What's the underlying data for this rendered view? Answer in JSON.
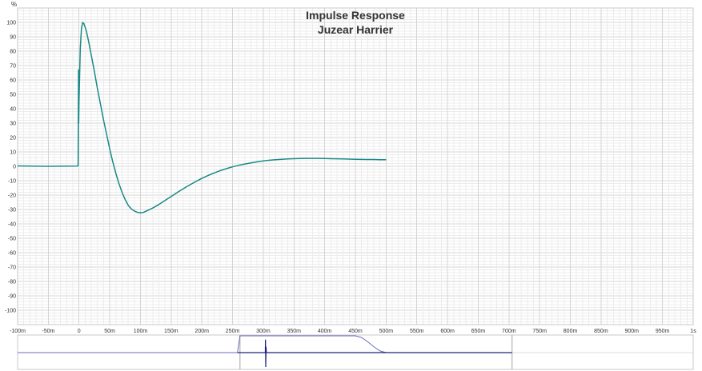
{
  "chart_data": {
    "type": "line",
    "title": "Impulse Response",
    "subtitle": "Juzear Harrier",
    "ylabel": "%",
    "xlabel": "",
    "xlim": [
      -0.1,
      1.0
    ],
    "ylim": [
      -110,
      110
    ],
    "grid": true,
    "x_ticks": [
      {
        "value": -0.1,
        "label": "-100m"
      },
      {
        "value": -0.05,
        "label": "-50m"
      },
      {
        "value": 0.0,
        "label": "0"
      },
      {
        "value": 0.05,
        "label": "50m"
      },
      {
        "value": 0.1,
        "label": "100m"
      },
      {
        "value": 0.15,
        "label": "150m"
      },
      {
        "value": 0.2,
        "label": "200m"
      },
      {
        "value": 0.25,
        "label": "250m"
      },
      {
        "value": 0.3,
        "label": "300m"
      },
      {
        "value": 0.35,
        "label": "350m"
      },
      {
        "value": 0.4,
        "label": "400m"
      },
      {
        "value": 0.45,
        "label": "450m"
      },
      {
        "value": 0.5,
        "label": "500m"
      },
      {
        "value": 0.55,
        "label": "550m"
      },
      {
        "value": 0.6,
        "label": "600m"
      },
      {
        "value": 0.65,
        "label": "650m"
      },
      {
        "value": 0.7,
        "label": "700m"
      },
      {
        "value": 0.75,
        "label": "750m"
      },
      {
        "value": 0.8,
        "label": "800m"
      },
      {
        "value": 0.85,
        "label": "850m"
      },
      {
        "value": 0.9,
        "label": "900m"
      },
      {
        "value": 0.95,
        "label": "950m"
      },
      {
        "value": 1.0,
        "label": "1s"
      }
    ],
    "y_ticks": [
      {
        "value": 100,
        "label": "100"
      },
      {
        "value": 90,
        "label": "90"
      },
      {
        "value": 80,
        "label": "80"
      },
      {
        "value": 70,
        "label": "70"
      },
      {
        "value": 60,
        "label": "60"
      },
      {
        "value": 50,
        "label": "50"
      },
      {
        "value": 40,
        "label": "40"
      },
      {
        "value": 30,
        "label": "30"
      },
      {
        "value": 20,
        "label": "20"
      },
      {
        "value": 10,
        "label": "10"
      },
      {
        "value": 0,
        "label": "0"
      },
      {
        "value": -10,
        "label": "-10"
      },
      {
        "value": -20,
        "label": "-20"
      },
      {
        "value": -30,
        "label": "-30"
      },
      {
        "value": -40,
        "label": "-40"
      },
      {
        "value": -50,
        "label": "-50"
      },
      {
        "value": -60,
        "label": "-60"
      },
      {
        "value": -70,
        "label": "-70"
      },
      {
        "value": -80,
        "label": "-80"
      },
      {
        "value": -90,
        "label": "-90"
      },
      {
        "value": -100,
        "label": "-100"
      }
    ],
    "series": [
      {
        "color": "#1a8a86",
        "points": [
          [
            -0.1,
            0.3
          ],
          [
            -0.05,
            0.0
          ],
          [
            -0.003,
            0.2
          ],
          [
            -0.0015,
            0.4
          ],
          [
            -0.0012,
            25
          ],
          [
            -0.0008,
            67
          ],
          [
            -0.0005,
            30
          ],
          [
            0.0,
            45
          ],
          [
            0.002,
            82
          ],
          [
            0.004,
            96
          ],
          [
            0.006,
            100
          ],
          [
            0.008,
            99
          ],
          [
            0.012,
            94
          ],
          [
            0.016,
            86
          ],
          [
            0.02,
            77
          ],
          [
            0.025,
            66
          ],
          [
            0.03,
            54
          ],
          [
            0.035,
            43
          ],
          [
            0.04,
            32
          ],
          [
            0.045,
            22
          ],
          [
            0.05,
            12
          ],
          [
            0.055,
            3
          ],
          [
            0.06,
            -5
          ],
          [
            0.065,
            -12
          ],
          [
            0.07,
            -18
          ],
          [
            0.075,
            -23
          ],
          [
            0.08,
            -27
          ],
          [
            0.085,
            -29.5
          ],
          [
            0.09,
            -31
          ],
          [
            0.095,
            -32
          ],
          [
            0.1,
            -32.3
          ],
          [
            0.105,
            -32
          ],
          [
            0.11,
            -31
          ],
          [
            0.12,
            -29
          ],
          [
            0.13,
            -26.5
          ],
          [
            0.14,
            -23.8
          ],
          [
            0.15,
            -21
          ],
          [
            0.16,
            -18.2
          ],
          [
            0.17,
            -15.5
          ],
          [
            0.18,
            -13
          ],
          [
            0.19,
            -10.6
          ],
          [
            0.2,
            -8.4
          ],
          [
            0.21,
            -6.4
          ],
          [
            0.22,
            -4.6
          ],
          [
            0.23,
            -3
          ],
          [
            0.24,
            -1.6
          ],
          [
            0.25,
            -0.4
          ],
          [
            0.26,
            0.7
          ],
          [
            0.27,
            1.6
          ],
          [
            0.28,
            2.4
          ],
          [
            0.29,
            3.1
          ],
          [
            0.3,
            3.7
          ],
          [
            0.31,
            4.2
          ],
          [
            0.32,
            4.6
          ],
          [
            0.33,
            4.9
          ],
          [
            0.34,
            5.1
          ],
          [
            0.35,
            5.3
          ],
          [
            0.36,
            5.4
          ],
          [
            0.37,
            5.5
          ],
          [
            0.38,
            5.5
          ],
          [
            0.39,
            5.5
          ],
          [
            0.4,
            5.4
          ],
          [
            0.41,
            5.3
          ],
          [
            0.42,
            5.2
          ],
          [
            0.43,
            5.1
          ],
          [
            0.44,
            5.0
          ],
          [
            0.45,
            4.9
          ],
          [
            0.46,
            4.8
          ],
          [
            0.47,
            4.7
          ],
          [
            0.48,
            4.7
          ],
          [
            0.49,
            4.6
          ],
          [
            0.5,
            4.6
          ]
        ]
      }
    ]
  },
  "overview": {
    "window_color": "#6b6bbf",
    "impulse_color": "#1a237e",
    "selection_color": "#c0c0c0",
    "window_curve": [
      [
        -0.1,
        0
      ],
      [
        0.258,
        0
      ],
      [
        0.262,
        1
      ],
      [
        0.45,
        1
      ],
      [
        0.46,
        0.9
      ],
      [
        0.47,
        0.65
      ],
      [
        0.48,
        0.35
      ],
      [
        0.49,
        0.1
      ],
      [
        0.5,
        0
      ],
      [
        0.705,
        0
      ]
    ],
    "impulse_trace": [
      [
        0.258,
        0
      ],
      [
        0.3033,
        0
      ],
      [
        0.3036,
        0.9
      ],
      [
        0.304,
        -1
      ],
      [
        0.3045,
        0.4
      ],
      [
        0.305,
        0
      ],
      [
        0.705,
        0
      ]
    ],
    "selection_range": [
      0.262,
      0.705
    ]
  }
}
